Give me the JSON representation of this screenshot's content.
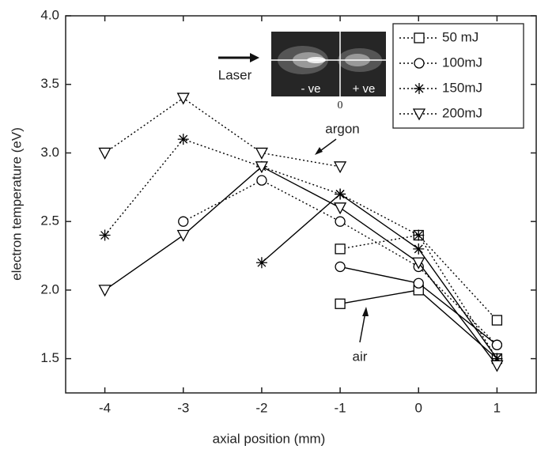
{
  "chart_data": {
    "type": "line",
    "xlabel": "axial position (mm)",
    "ylabel": "electron temperature (eV)",
    "x": [
      -4,
      -3,
      -2,
      -1,
      0,
      1
    ],
    "xlim": [
      -4.5,
      1.5
    ],
    "xticks": [
      -4,
      -3,
      -2,
      -1,
      0,
      1
    ],
    "ylim": [
      1.25,
      4.0
    ],
    "yticks": [
      1.5,
      {
        "value": 2,
        "label": "2.0"
      },
      2.5,
      {
        "value": 3,
        "label": "3.0"
      },
      3.5,
      {
        "value": 4,
        "label": "4.0"
      }
    ],
    "legend": "upper right",
    "color": "#000000",
    "series": [
      {
        "name": "50 mJ",
        "marker": "square",
        "values": [
          null,
          null,
          null,
          2.3,
          2.4,
          1.78
        ],
        "values_air": [
          null,
          null,
          null,
          1.9,
          2.0,
          1.5
        ]
      },
      {
        "name": "100mJ",
        "marker": "circle",
        "values": [
          null,
          2.5,
          2.8,
          2.5,
          2.17,
          1.6
        ],
        "values_air": [
          null,
          null,
          null,
          2.17,
          2.05,
          1.6
        ]
      },
      {
        "name": "150mJ",
        "marker": "star",
        "values": [
          2.4,
          3.1,
          2.9,
          2.7,
          2.4,
          1.5
        ],
        "values_air": [
          null,
          null,
          2.2,
          2.7,
          2.3,
          1.5
        ]
      },
      {
        "name": "200mJ",
        "marker": "triangle",
        "values": [
          3.0,
          3.4,
          3.0,
          2.9,
          null,
          null
        ],
        "values_air": [
          2.0,
          2.4,
          2.9,
          2.6,
          2.2,
          1.45
        ]
      }
    ],
    "annotations": {
      "argon": "argon",
      "air": "air",
      "laser": "Laser",
      "minus": "- ve",
      "plus": "+ ve",
      "zero": "0"
    }
  }
}
